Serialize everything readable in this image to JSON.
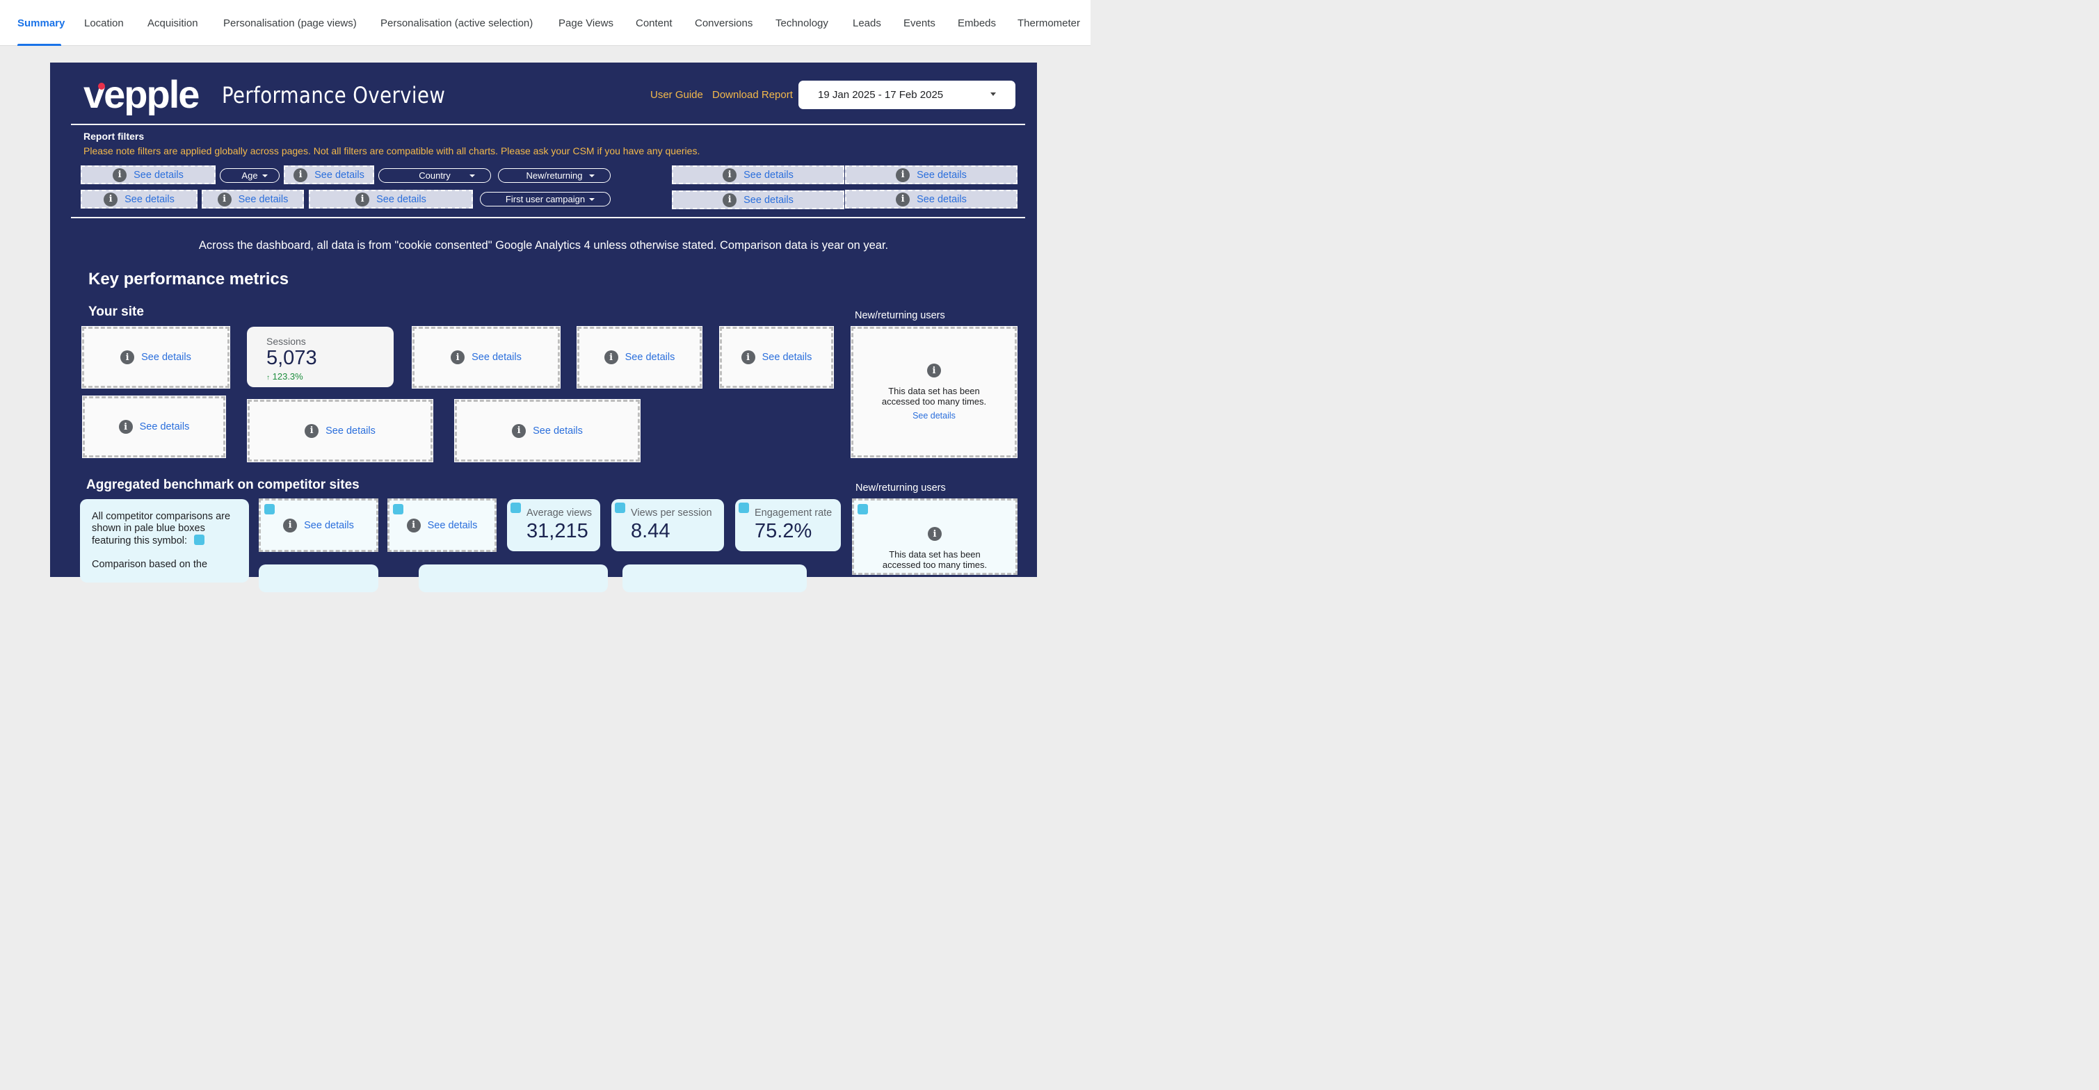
{
  "nav": {
    "tabs": [
      {
        "label": "Summary"
      },
      {
        "label": "Location"
      },
      {
        "label": "Acquisition"
      },
      {
        "label": "Personalisation (page views)"
      },
      {
        "label": "Personalisation (active selection)"
      },
      {
        "label": "Page Views"
      },
      {
        "label": "Content"
      },
      {
        "label": "Conversions"
      },
      {
        "label": "Technology"
      },
      {
        "label": "Leads"
      },
      {
        "label": "Events"
      },
      {
        "label": "Embeds"
      },
      {
        "label": "Thermometer"
      }
    ],
    "active": "Summary"
  },
  "header": {
    "logo_text": "vepple",
    "title": "Performance Overview",
    "user_guide": "User Guide",
    "download_report": "Download Report",
    "date_range": "19 Jan 2025 - 17 Feb 2025"
  },
  "filters": {
    "title": "Report filters",
    "note": "Please note filters are applied globally across pages. Not all filters are compatible with all charts. Please ask your CSM if you have any queries.",
    "see_details": "See details",
    "age": "Age",
    "country": "Country",
    "new_returning": "New/returning",
    "first_user_campaign": "First user campaign"
  },
  "disclaimer": "Across the dashboard, all data is from \"cookie consented\" Google Analytics 4 unless otherwise stated. Comparison data is year on year.",
  "kpi": {
    "heading": "Key performance metrics",
    "your_site": "Your site",
    "see_details": "See details",
    "sessions": {
      "label": "Sessions",
      "value": "5,073",
      "delta": "123.3%"
    },
    "new_returning_label": "New/returning users",
    "too_many": "This data set has been accessed too many times."
  },
  "benchmark": {
    "heading": "Aggregated benchmark on competitor sites",
    "note1": "All competitor comparisons are shown in pale blue boxes featuring this symbol:",
    "note2": "Comparison based on the",
    "see_details": "See details",
    "avg_views": {
      "label": "Average views",
      "value": "31,215"
    },
    "views_per_session": {
      "label": "Views per session",
      "value": "8.44"
    },
    "engagement_rate": {
      "label": "Engagement rate",
      "value": "75.2%"
    },
    "new_returning_label": "New/returning users",
    "too_many": "This data set has been accessed too many times."
  },
  "colors": {
    "panel_bg": "#232c5f",
    "accent_link": "#f3b94b",
    "active_tab": "#1a73e8",
    "positive_delta": "#1e8e3e",
    "benchmark_bg": "#e4f6fb"
  }
}
